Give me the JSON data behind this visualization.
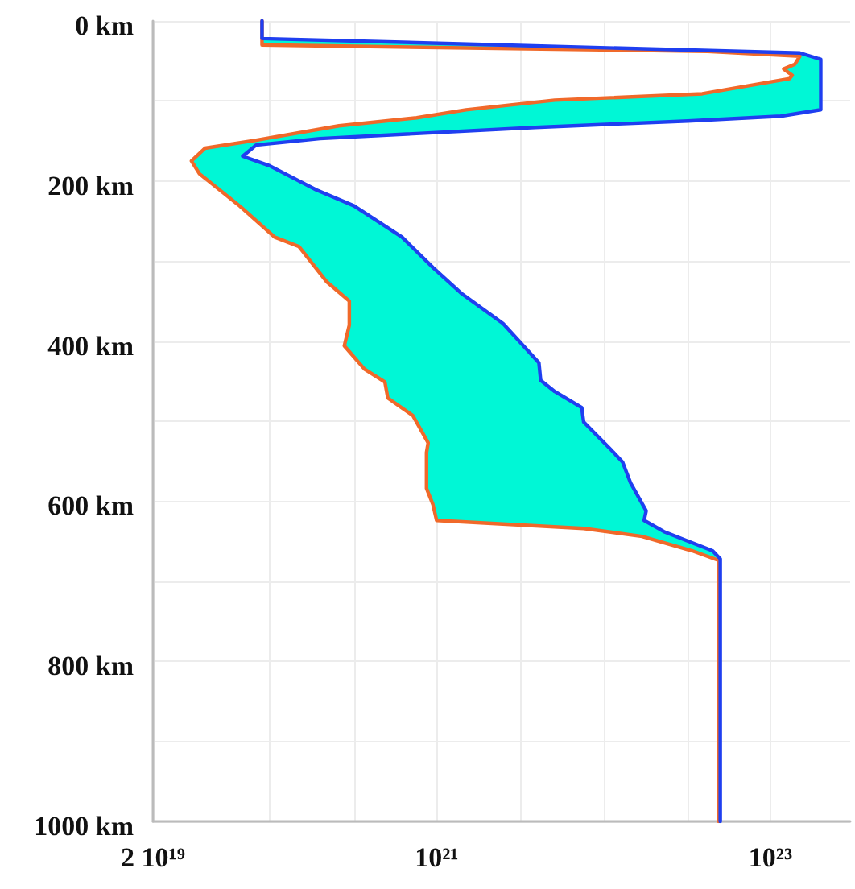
{
  "chart_data": {
    "type": "line",
    "log": "x",
    "grid": true,
    "line_style": "solid",
    "marker": "none",
    "xlim": [
      2e+19,
      3e+23
    ],
    "xticks": [
      {
        "value": 2e+19,
        "label": "2 10¹⁹"
      },
      {
        "value": 1e+20,
        "label": null
      },
      {
        "value": 3.2e+20,
        "label": null
      },
      {
        "value": 1e+21,
        "label": "10²¹"
      },
      {
        "value": 3.2e+21,
        "label": null
      },
      {
        "value": 1e+22,
        "label": null
      },
      {
        "value": 3.2e+22,
        "label": null
      },
      {
        "value": 1e+23,
        "label": "10²³"
      }
    ],
    "ylim": [
      1000,
      0
    ],
    "yticks": [
      {
        "value": 0,
        "label": "0 km"
      },
      {
        "value": 100,
        "label": null
      },
      {
        "value": 200,
        "label": "200 km"
      },
      {
        "value": 300,
        "label": null
      },
      {
        "value": 400,
        "label": "400 km"
      },
      {
        "value": 500,
        "label": null
      },
      {
        "value": 600,
        "label": "600 km"
      },
      {
        "value": 700,
        "label": null
      },
      {
        "value": 800,
        "label": "800 km"
      },
      {
        "value": 900,
        "label": null
      },
      {
        "value": 1000,
        "label": "1000 km"
      }
    ],
    "series": [
      {
        "type": "area",
        "color": "#00f7d6",
        "x": [
          9e+19,
          1.5e+23,
          2e+23,
          2e+23,
          1.15e+23,
          3.2e+22,
          3.9e+21,
          2e+20,
          8.3e+19,
          6.9e+19,
          1e+20,
          1.9e+20,
          3.2e+20,
          6.2e+20,
          9.5e+20,
          1.4e+21,
          2.5e+21,
          4.1e+21,
          4.2e+21,
          5.1e+21,
          7.4e+21,
          7.6e+21,
          1.1e+22,
          1.3e+22,
          1.45e+22,
          1.8e+22,
          1.75e+22,
          2.3e+22,
          4.5e+22,
          5e+22,
          4.9e+22,
          3.4e+22,
          1.7e+22,
          7.6e+21,
          1e+21,
          9.5e+20,
          8.7e+20,
          8.7e+20,
          8.9e+20,
          7.2e+20,
          5.1e+20,
          4.9e+20,
          3.7e+20,
          2.8e+20,
          3e+20,
          3e+20,
          2.2e+20,
          1.5e+20,
          1.07e+20,
          6.6e+19,
          3.8e+19,
          3.4e+19,
          4.1e+19,
          8.3e+19,
          2.6e+20,
          7.6e+20,
          1.5e+21,
          5.1e+21,
          3.9e+22,
          1.3e+23,
          1.35e+23,
          1.2e+23,
          1.4e+23,
          1.5e+23,
          4.2e+22,
          9e+19
        ],
        "values": [
          22,
          40,
          48,
          111,
          119,
          125,
          133,
          147,
          155,
          169,
          181,
          211,
          231,
          270,
          308,
          340,
          378,
          427,
          449,
          463,
          483,
          501,
          535,
          551,
          577,
          612,
          624,
          638,
          662,
          672,
          674,
          662,
          644,
          634,
          624,
          604,
          584,
          539,
          527,
          493,
          471,
          451,
          435,
          406,
          380,
          350,
          326,
          282,
          270,
          231,
          191,
          175,
          159,
          149,
          131,
          121,
          111,
          99,
          91,
          72,
          68,
          60,
          54,
          44,
          38,
          30
        ]
      },
      {
        "color": "#1f3ff0",
        "x": [
          9e+19,
          9e+19,
          1.5e+23,
          2e+23,
          2e+23,
          1.15e+23,
          3.2e+22,
          3.9e+21,
          2e+20,
          8.3e+19,
          6.9e+19,
          1e+20,
          1.9e+20,
          3.2e+20,
          6.2e+20,
          9.5e+20,
          1.4e+21,
          2.5e+21,
          4.1e+21,
          4.2e+21,
          5.1e+21,
          7.4e+21,
          7.6e+21,
          1.1e+22,
          1.3e+22,
          1.45e+22,
          1.8e+22,
          1.75e+22,
          2.3e+22,
          4.5e+22,
          5e+22,
          5e+22
        ],
        "values": [
          0,
          22,
          40,
          48,
          111,
          119,
          125,
          133,
          147,
          155,
          169,
          181,
          211,
          231,
          270,
          308,
          340,
          378,
          427,
          449,
          463,
          483,
          501,
          535,
          551,
          577,
          612,
          624,
          638,
          662,
          672,
          1000
        ]
      },
      {
        "color": "#f0692a",
        "x": [
          9e+19,
          9e+19,
          4.2e+22,
          1.5e+23,
          1.4e+23,
          1.2e+23,
          1.35e+23,
          1.3e+23,
          3.9e+22,
          5.1e+21,
          1.5e+21,
          7.6e+20,
          2.6e+20,
          8.3e+19,
          4.1e+19,
          3.4e+19,
          3.8e+19,
          6.6e+19,
          1.07e+20,
          1.5e+20,
          2.2e+20,
          3e+20,
          3e+20,
          2.8e+20,
          3.7e+20,
          4.9e+20,
          5.1e+20,
          7.2e+20,
          8.9e+20,
          8.7e+20,
          8.7e+20,
          9.5e+20,
          1e+21,
          7.6e+21,
          1.7e+22,
          3.4e+22,
          4.9e+22,
          4.9e+22
        ],
        "values": [
          0,
          30,
          38,
          44,
          54,
          60,
          68,
          72,
          91,
          99,
          111,
          121,
          131,
          149,
          159,
          175,
          191,
          231,
          270,
          282,
          326,
          350,
          380,
          406,
          435,
          451,
          471,
          493,
          527,
          539,
          584,
          604,
          624,
          634,
          644,
          662,
          674,
          1000
        ]
      }
    ]
  }
}
